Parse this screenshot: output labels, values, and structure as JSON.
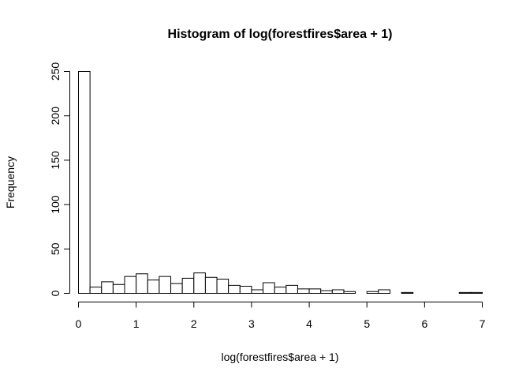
{
  "chart_data": {
    "type": "bar",
    "title": "Histogram of log(forestfires$area + 1)",
    "xlabel": "log(forestfires$area + 1)",
    "ylabel": "Frequency",
    "xlim": [
      0,
      7
    ],
    "ylim": [
      0,
      250
    ],
    "x_ticks": [
      0,
      1,
      2,
      3,
      4,
      5,
      6,
      7
    ],
    "y_ticks": [
      0,
      50,
      100,
      150,
      200,
      250
    ],
    "grid": false,
    "bin_width": 0.2,
    "bin_edges": [
      0,
      0.2,
      0.4,
      0.6,
      0.8,
      1.0,
      1.2,
      1.4,
      1.6,
      1.8,
      2.0,
      2.2,
      2.4,
      2.6,
      2.8,
      3.0,
      3.2,
      3.4,
      3.6,
      3.8,
      4.0,
      4.2,
      4.4,
      4.6,
      4.8,
      5.0,
      5.2,
      5.4,
      5.6,
      5.8,
      6.0,
      6.2,
      6.4,
      6.6,
      6.8,
      7.0
    ],
    "values": [
      250,
      7,
      13,
      10,
      19,
      22,
      15,
      19,
      11,
      17,
      23,
      18,
      16,
      9,
      8,
      4,
      12,
      7,
      9,
      5,
      5,
      3,
      4,
      2,
      0,
      2,
      4,
      0,
      1,
      0,
      0,
      0,
      0,
      1,
      1
    ]
  }
}
